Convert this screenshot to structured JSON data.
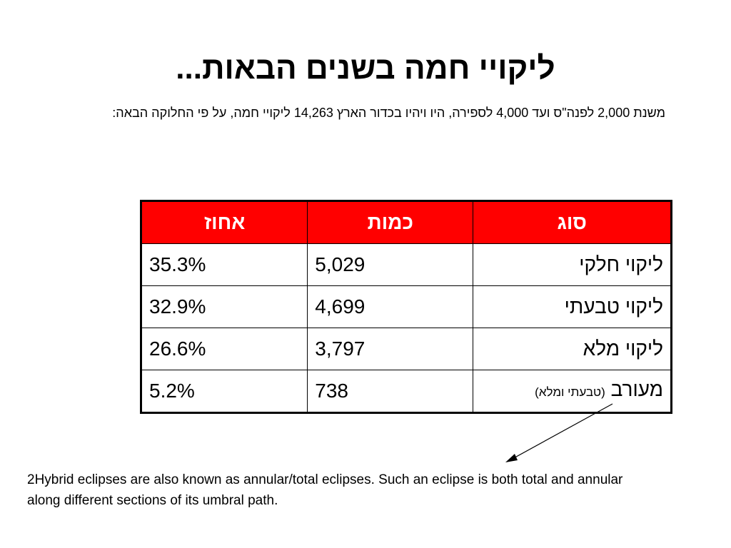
{
  "slide": {
    "title": "ליקויי חמה בשנים הבאות...",
    "subtitle": "משנת 2,000 לפנה\"ס ועד 4,000 לספירה, היו ויהיו בכדור הארץ 14,263 ליקויי חמה, על פי החלוקה הבאה:"
  },
  "table": {
    "headers": {
      "type": "סוג",
      "count": "כמות",
      "percent": "אחוז"
    },
    "rows": [
      {
        "type": "ליקוי חלקי",
        "type_note": "",
        "count": "5,029",
        "percent": "35.3%"
      },
      {
        "type": "ליקוי טבעתי",
        "type_note": "",
        "count": "4,699",
        "percent": "32.9%"
      },
      {
        "type": "ליקוי מלא",
        "type_note": "",
        "count": "3,797",
        "percent": "26.6%"
      },
      {
        "type": "מעורב",
        "type_note": "(טבעתי ומלא)",
        "count": "738",
        "percent": "5.2%"
      }
    ],
    "header_color": "#ff0000"
  },
  "footnote": {
    "text": "2Hybrid eclipses are also known as annular/total eclipses. Such an eclipse is both total and annular along different sections of its umbral path."
  }
}
